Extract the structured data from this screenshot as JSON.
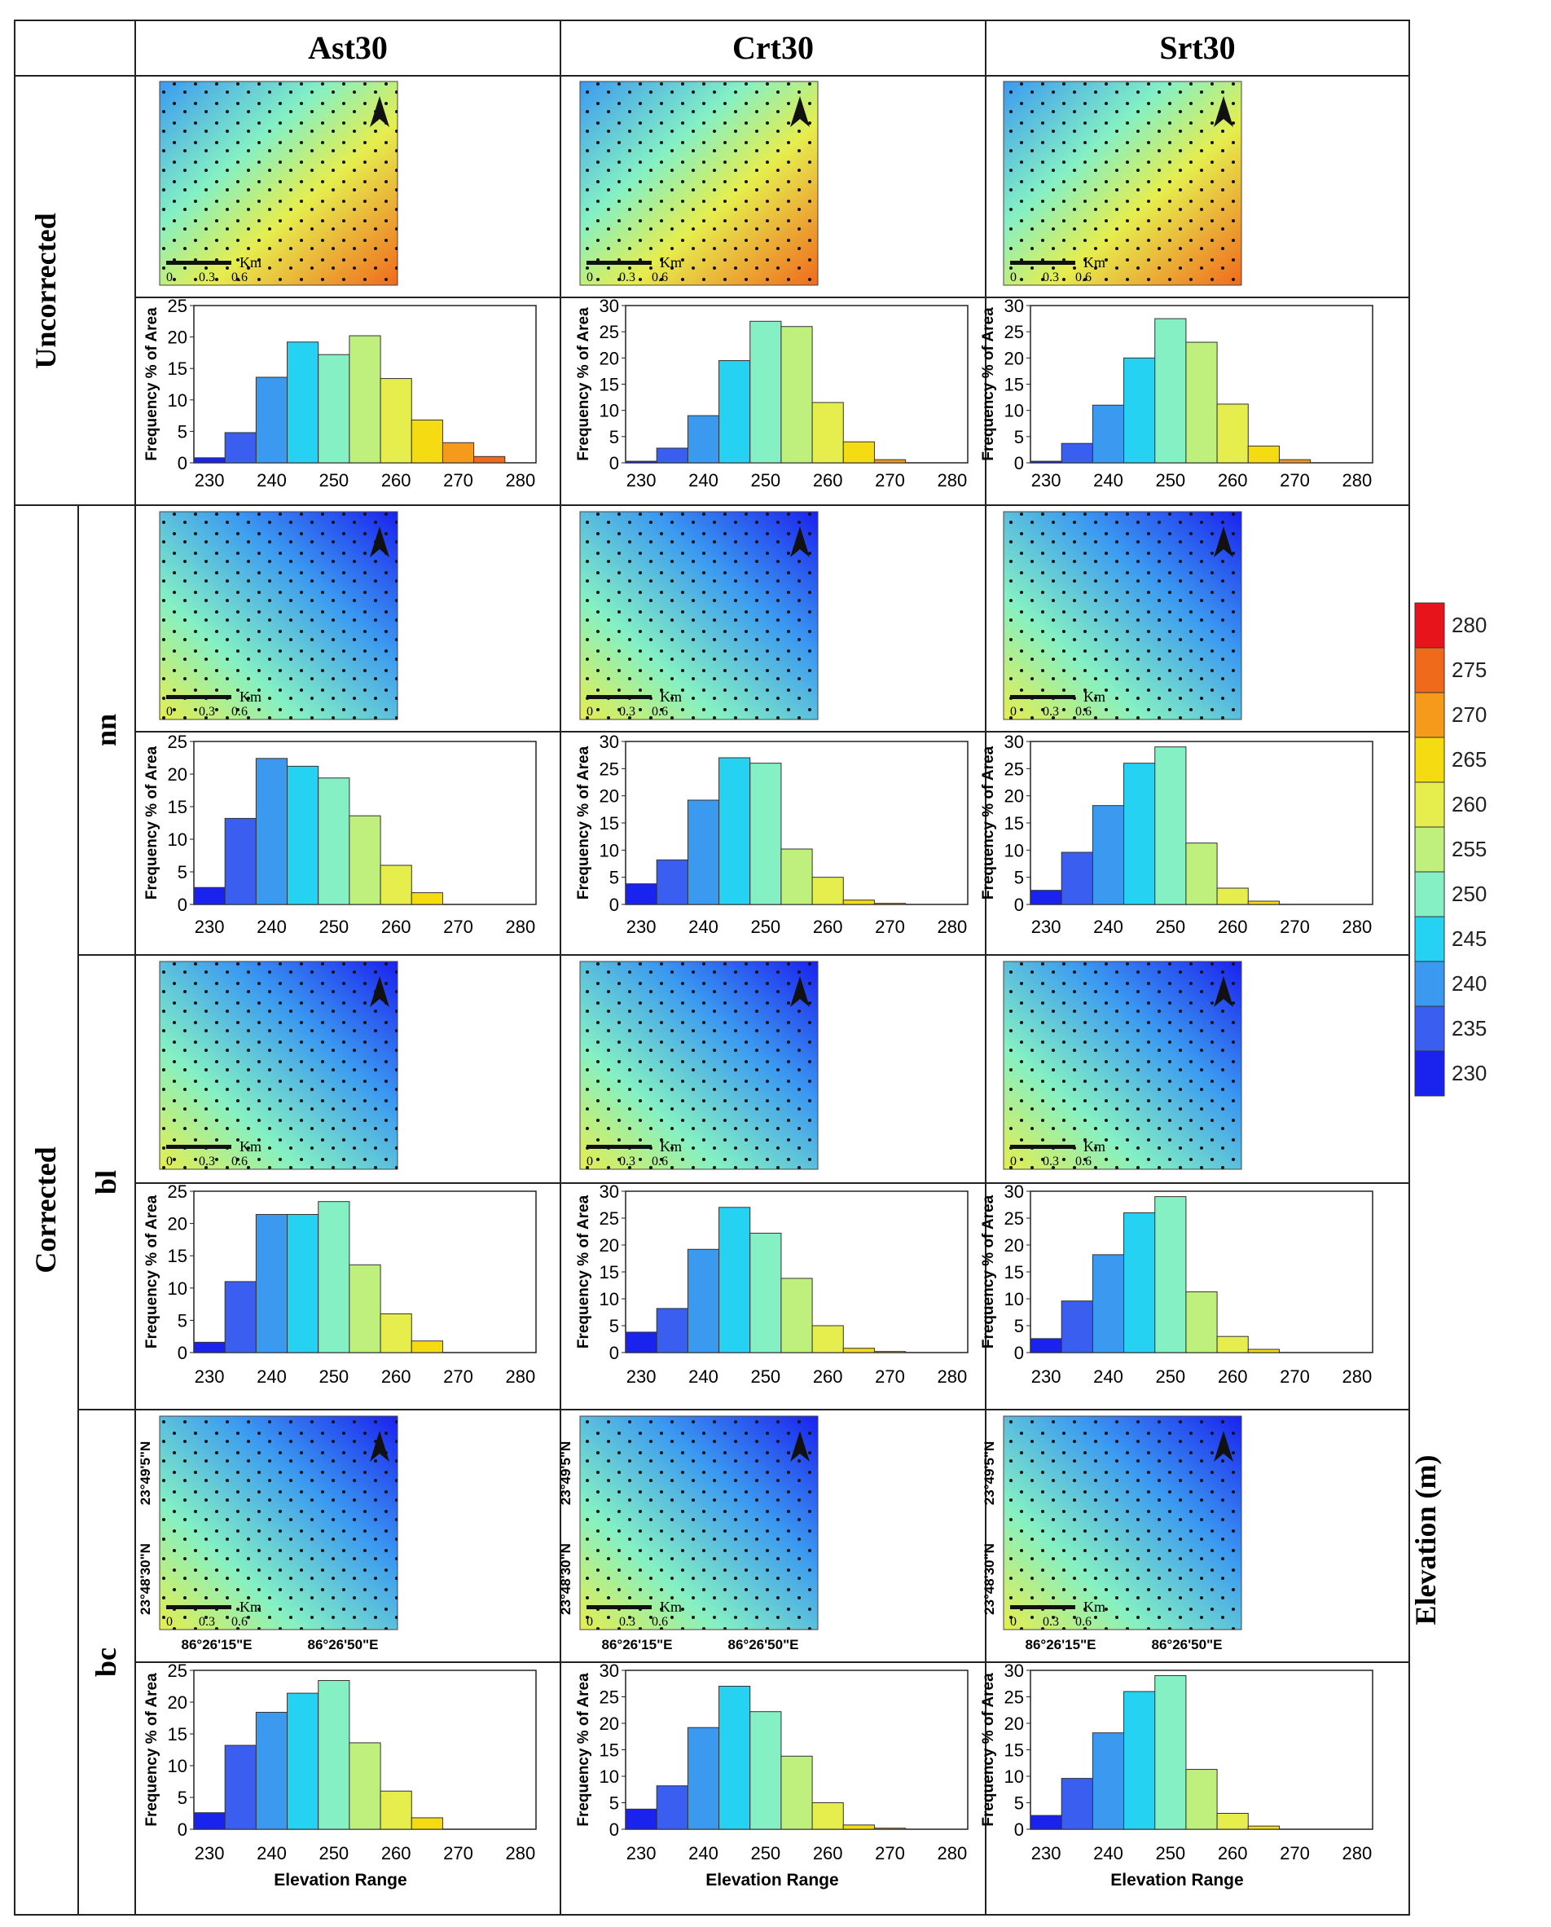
{
  "columns": [
    "Ast30",
    "Crt30",
    "Srt30"
  ],
  "groups": {
    "uncorrected": "Uncorrected",
    "corrected": "Corrected"
  },
  "rows": [
    "Uncorrected",
    "nn",
    "bl",
    "bc"
  ],
  "axis": {
    "ylabel": "Frequency % of Area",
    "xlabel": "Elevation Range",
    "xticks": [
      "230",
      "240",
      "250",
      "260",
      "270",
      "280"
    ]
  },
  "map": {
    "scale_unit": "Km",
    "scale_ticks": [
      "0",
      "0.3",
      "0.6"
    ],
    "lat_labels": [
      "23°49'5\"N",
      "23°48'30\"N"
    ],
    "lon_labels": [
      "86°26'15\"E",
      "86°26'50\"E"
    ]
  },
  "legend": {
    "title": "Elevation (m)",
    "levels": [
      "280",
      "275",
      "270",
      "265",
      "260",
      "255",
      "250",
      "245",
      "240",
      "235",
      "230"
    ],
    "colors": [
      "#e8141b",
      "#f06a1c",
      "#f59a1a",
      "#f5dc12",
      "#e6ee4e",
      "#bff07d",
      "#84f0c4",
      "#25d2f2",
      "#3b9af0",
      "#3a5ff0",
      "#1a22ee"
    ]
  },
  "chart_data": [
    {
      "type": "bar",
      "panel": "Uncorrected / Ast30",
      "categories": [
        "230",
        "235",
        "240",
        "245",
        "250",
        "255",
        "260",
        "265",
        "270",
        "275"
      ],
      "values": [
        0.8,
        4.8,
        13.6,
        19.2,
        17.2,
        20.2,
        13.4,
        6.8,
        3.2,
        1.0
      ],
      "ylim": [
        0,
        25
      ]
    },
    {
      "type": "bar",
      "panel": "Uncorrected / Crt30",
      "categories": [
        "230",
        "235",
        "240",
        "245",
        "250",
        "255",
        "260",
        "265",
        "270",
        "275"
      ],
      "values": [
        0.3,
        2.8,
        9.0,
        19.5,
        27.0,
        26.0,
        11.5,
        4.0,
        0.6,
        0
      ],
      "ylim": [
        0,
        30
      ]
    },
    {
      "type": "bar",
      "panel": "Uncorrected / Srt30",
      "categories": [
        "230",
        "235",
        "240",
        "245",
        "250",
        "255",
        "260",
        "265",
        "270",
        "275"
      ],
      "values": [
        0.3,
        3.7,
        11.0,
        20.0,
        27.5,
        23.0,
        11.2,
        3.2,
        0.6,
        0
      ],
      "ylim": [
        0,
        30
      ]
    },
    {
      "type": "bar",
      "panel": "nn / Ast30",
      "categories": [
        "230",
        "235",
        "240",
        "245",
        "250",
        "255",
        "260",
        "265",
        "270",
        "275"
      ],
      "values": [
        2.6,
        13.2,
        22.4,
        21.2,
        19.4,
        13.6,
        6.0,
        1.8,
        0,
        0
      ],
      "ylim": [
        0,
        25
      ]
    },
    {
      "type": "bar",
      "panel": "nn / Crt30",
      "categories": [
        "230",
        "235",
        "240",
        "245",
        "250",
        "255",
        "260",
        "265",
        "270",
        "275"
      ],
      "values": [
        3.8,
        8.2,
        19.2,
        27.0,
        26.0,
        10.2,
        5.0,
        0.8,
        0.2,
        0
      ],
      "ylim": [
        0,
        30
      ]
    },
    {
      "type": "bar",
      "panel": "nn / Srt30",
      "categories": [
        "230",
        "235",
        "240",
        "245",
        "250",
        "255",
        "260",
        "265",
        "270",
        "275"
      ],
      "values": [
        2.6,
        9.6,
        18.2,
        26.0,
        29.0,
        11.3,
        3.0,
        0.6,
        0,
        0
      ],
      "ylim": [
        0,
        30
      ]
    },
    {
      "type": "bar",
      "panel": "bl / Ast30",
      "categories": [
        "230",
        "235",
        "240",
        "245",
        "250",
        "255",
        "260",
        "265",
        "270",
        "275"
      ],
      "values": [
        1.6,
        11.0,
        21.4,
        21.4,
        23.4,
        13.6,
        6.0,
        1.8,
        0,
        0
      ],
      "ylim": [
        0,
        25
      ]
    },
    {
      "type": "bar",
      "panel": "bl / Crt30",
      "categories": [
        "230",
        "235",
        "240",
        "245",
        "250",
        "255",
        "260",
        "265",
        "270",
        "275"
      ],
      "values": [
        3.8,
        8.2,
        19.2,
        27.0,
        22.2,
        13.8,
        5.0,
        0.8,
        0.2,
        0
      ],
      "ylim": [
        0,
        30
      ]
    },
    {
      "type": "bar",
      "panel": "bl / Srt30",
      "categories": [
        "230",
        "235",
        "240",
        "245",
        "250",
        "255",
        "260",
        "265",
        "270",
        "275"
      ],
      "values": [
        2.6,
        9.6,
        18.2,
        26.0,
        29.0,
        11.3,
        3.0,
        0.6,
        0,
        0
      ],
      "ylim": [
        0,
        30
      ]
    },
    {
      "type": "bar",
      "panel": "bc / Ast30",
      "categories": [
        "230",
        "235",
        "240",
        "245",
        "250",
        "255",
        "260",
        "265",
        "270",
        "275"
      ],
      "values": [
        2.6,
        13.2,
        18.4,
        21.4,
        23.4,
        13.6,
        6.0,
        1.8,
        0,
        0
      ],
      "ylim": [
        0,
        25
      ]
    },
    {
      "type": "bar",
      "panel": "bc / Crt30",
      "categories": [
        "230",
        "235",
        "240",
        "245",
        "250",
        "255",
        "260",
        "265",
        "270",
        "275"
      ],
      "values": [
        3.8,
        8.2,
        19.2,
        27.0,
        22.2,
        13.8,
        5.0,
        0.8,
        0.2,
        0
      ],
      "ylim": [
        0,
        30
      ]
    },
    {
      "type": "bar",
      "panel": "bc / Srt30",
      "categories": [
        "230",
        "235",
        "240",
        "245",
        "250",
        "255",
        "260",
        "265",
        "270",
        "275"
      ],
      "values": [
        2.6,
        9.6,
        18.2,
        26.0,
        29.0,
        11.3,
        3.0,
        0.6,
        0,
        0
      ],
      "ylim": [
        0,
        30
      ]
    }
  ]
}
